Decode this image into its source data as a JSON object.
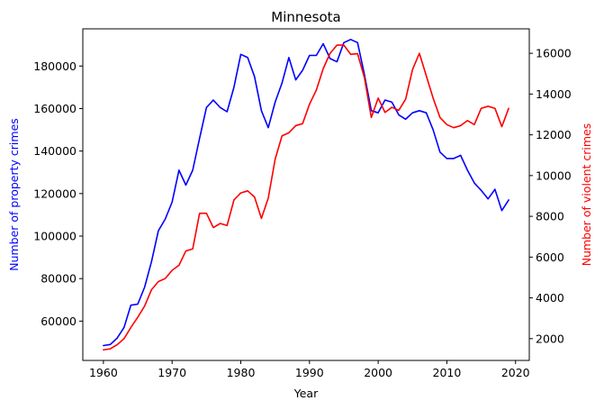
{
  "chart_data": {
    "type": "line",
    "title": "Minnesota",
    "xlabel": "Year",
    "ylabel": "Number of property crimes",
    "y2label": "Number of violent crimes",
    "xlim": [
      1957,
      2022
    ],
    "ylim": [
      41500,
      197500
    ],
    "y2lim": [
      930,
      17200
    ],
    "x_ticks": [
      1960,
      1970,
      1980,
      1990,
      2000,
      2010,
      2020
    ],
    "y_ticks": [
      60000,
      80000,
      100000,
      120000,
      140000,
      160000,
      180000
    ],
    "y2_ticks": [
      2000,
      4000,
      6000,
      8000,
      10000,
      12000,
      14000,
      16000
    ],
    "grid": false,
    "x": [
      1960,
      1961,
      1962,
      1963,
      1964,
      1965,
      1966,
      1967,
      1968,
      1969,
      1970,
      1971,
      1972,
      1973,
      1974,
      1975,
      1976,
      1977,
      1978,
      1979,
      1980,
      1981,
      1982,
      1983,
      1984,
      1985,
      1986,
      1987,
      1988,
      1989,
      1990,
      1991,
      1992,
      1993,
      1994,
      1995,
      1996,
      1997,
      1998,
      1999,
      2000,
      2001,
      2002,
      2003,
      2004,
      2005,
      2006,
      2007,
      2008,
      2009,
      2010,
      2011,
      2012,
      2013,
      2014,
      2015,
      2016,
      2017,
      2018,
      2019
    ],
    "series": [
      {
        "name": "Number of property crimes",
        "axis": "left",
        "color": "#0000ff",
        "values": [
          48500,
          49000,
          52000,
          57000,
          67500,
          68000,
          76000,
          88000,
          102500,
          108000,
          116000,
          131000,
          124000,
          131000,
          146000,
          160500,
          164000,
          160500,
          158500,
          170000,
          185500,
          184000,
          175000,
          159000,
          151000,
          163000,
          172000,
          184000,
          173500,
          178000,
          185000,
          185000,
          190500,
          183500,
          182000,
          191000,
          192500,
          191000,
          176000,
          159000,
          158000,
          164000,
          163000,
          157000,
          155000,
          158000,
          159000,
          158000,
          150000,
          139500,
          136500,
          136500,
          138000,
          131000,
          125000,
          121500,
          117500,
          122000,
          112000,
          117000
        ]
      },
      {
        "name": "Number of violent crimes",
        "axis": "right",
        "color": "#ff0000",
        "values": [
          1450,
          1500,
          1700,
          2000,
          2550,
          3050,
          3600,
          4400,
          4800,
          4950,
          5350,
          5600,
          6300,
          6400,
          8150,
          8150,
          7450,
          7650,
          7550,
          8800,
          9150,
          9250,
          8950,
          7900,
          8900,
          10800,
          11950,
          12100,
          12450,
          12550,
          13500,
          14200,
          15250,
          16000,
          16400,
          16400,
          15950,
          15980,
          14800,
          12850,
          13800,
          13100,
          13350,
          13200,
          13750,
          15200,
          16000,
          14900,
          13800,
          12850,
          12500,
          12350,
          12450,
          12700,
          12500,
          13300,
          13400,
          13300,
          12400,
          13300
        ]
      }
    ]
  }
}
